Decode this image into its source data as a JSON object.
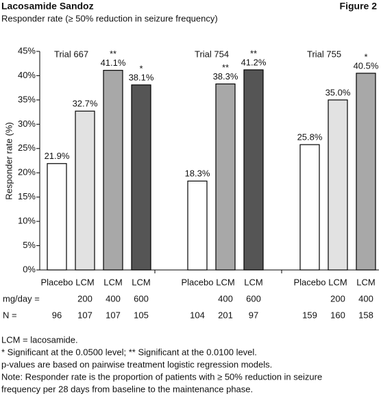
{
  "chart_data": {
    "type": "bar",
    "title": "Lacosamide Sandoz",
    "figure": "Figure 2",
    "subtitle": "Responder rate (≥ 50% reduction in seizure frequency)",
    "ylabel": "Responder rate (%)",
    "ylim": [
      0,
      45
    ],
    "yticks": [
      {
        "value": 0,
        "label": "0%"
      },
      {
        "value": 5,
        "label": "5%"
      },
      {
        "value": 10,
        "label": "10%"
      },
      {
        "value": 15,
        "label": "15%"
      },
      {
        "value": 20,
        "label": "20%"
      },
      {
        "value": 25,
        "label": "25%"
      },
      {
        "value": 30,
        "label": "30%"
      },
      {
        "value": 35,
        "label": "35%"
      },
      {
        "value": 40,
        "label": "40%"
      },
      {
        "value": 45,
        "label": "45%"
      }
    ],
    "dose_label": "mg/day =",
    "n_label": "N =",
    "groups": [
      {
        "name": "Trial 667",
        "categories": [
          "Placebo",
          "LCM",
          "LCM",
          "LCM"
        ],
        "doses": [
          null,
          200,
          400,
          600
        ],
        "n": [
          96,
          107,
          107,
          105
        ],
        "values": [
          21.9,
          32.7,
          41.1,
          38.1
        ],
        "value_labels": [
          "21.9%",
          "32.7%",
          "41.1%",
          "38.1%"
        ],
        "significance": [
          null,
          null,
          "**",
          "*"
        ],
        "colors": [
          "#ffffff",
          "#e2e2e2",
          "#a8a8a8",
          "#555555"
        ]
      },
      {
        "name": "Trial 754",
        "categories": [
          "Placebo",
          "LCM",
          "LCM"
        ],
        "doses": [
          null,
          400,
          600
        ],
        "n": [
          104,
          201,
          97
        ],
        "values": [
          18.3,
          38.3,
          41.2
        ],
        "value_labels": [
          "18.3%",
          "38.3%",
          "41.2%"
        ],
        "significance": [
          null,
          "**",
          "**"
        ],
        "colors": [
          "#ffffff",
          "#a8a8a8",
          "#555555"
        ]
      },
      {
        "name": "Trial 755",
        "categories": [
          "Placebo",
          "LCM",
          "LCM"
        ],
        "doses": [
          null,
          200,
          400
        ],
        "n": [
          159,
          160,
          158
        ],
        "values": [
          25.8,
          35.0,
          40.5
        ],
        "value_labels": [
          "25.8%",
          "35.0%",
          "40.5%"
        ],
        "significance": [
          null,
          null,
          "*"
        ],
        "colors": [
          "#ffffff",
          "#e2e2e2",
          "#a8a8a8"
        ]
      }
    ],
    "notes": [
      "LCM = lacosamide.",
      "* Significant at the 0.0500 level;  ** Significant at the 0.0100 level.",
      "p-values are based on pairwise treatment logistic regression models.",
      "Note: Responder rate is the proportion of patients with ≥ 50% reduction in seizure",
      "frequency per 28 days from baseline to the maintenance phase."
    ]
  }
}
